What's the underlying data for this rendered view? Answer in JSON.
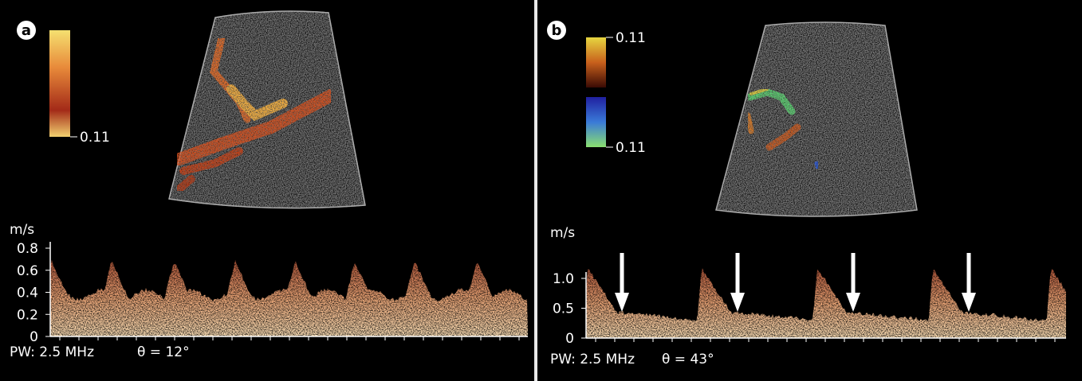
{
  "panels": [
    {
      "label": "a",
      "colorbar_labels": [
        "0.11"
      ],
      "unit": "m/s",
      "yticks": [
        0.8,
        0.6,
        0.4,
        0.2,
        0
      ],
      "settings": "PW: 2.5 MHz",
      "angle": "θ = 12°"
    },
    {
      "label": "b",
      "colorbar_labels": [
        "0.11",
        "0.11"
      ],
      "unit": "m/s",
      "yticks": [
        {
          "value": 1,
          "label": "1.0"
        },
        0.5,
        0
      ],
      "settings": "PW: 2.5 MHz",
      "angle": "θ = 43°"
    }
  ]
}
